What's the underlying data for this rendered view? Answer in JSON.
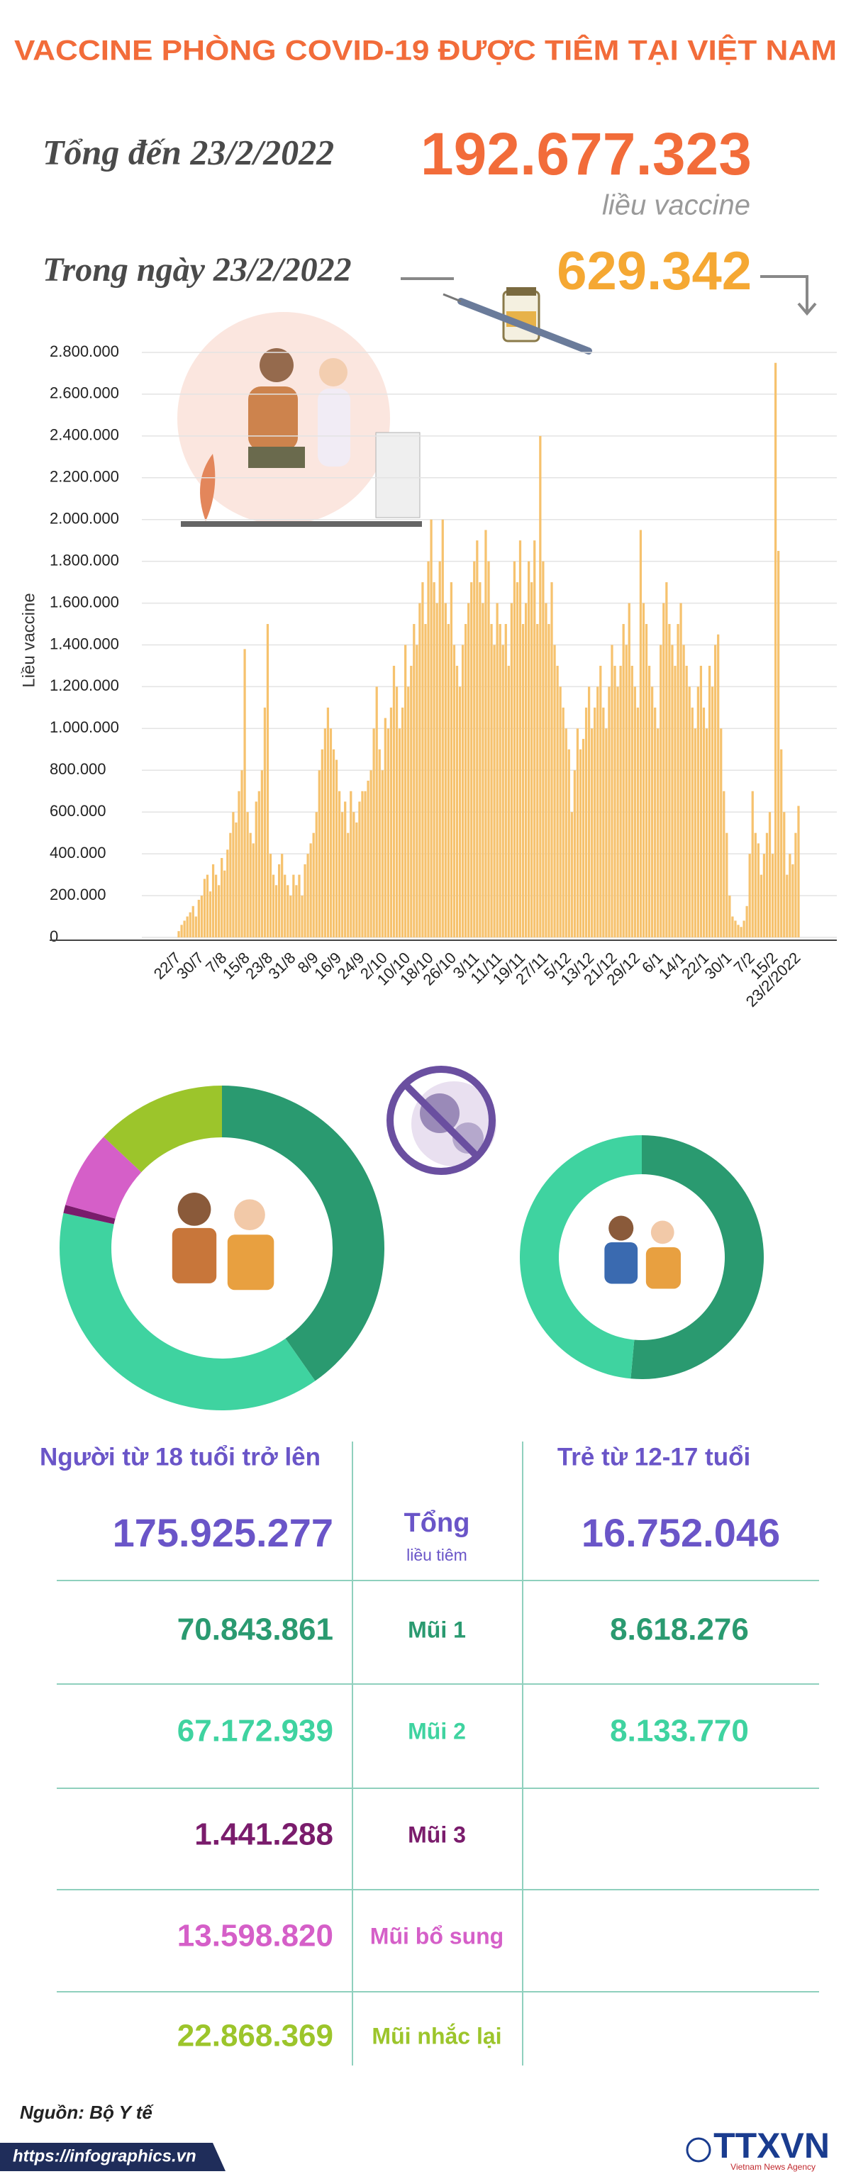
{
  "header": {
    "title": "VACCINE PHÒNG COVID-19 ĐƯỢC TIÊM TẠI VIỆT NAM",
    "total_text": "Tổng đến 23/2/2022",
    "total": {
      "value": 192677323,
      "label": "192.677.323"
    },
    "unit": "liều vaccine",
    "daily_text": "Trong ngày 23/2/2022",
    "daily": {
      "value": 629342,
      "label": "629.342"
    }
  },
  "chart_data": [
    {
      "type": "bar",
      "y_label": "Liều vaccine",
      "color": "#f6c26e",
      "grid": true,
      "ylim": [
        0,
        2800000
      ],
      "yticks": [
        0,
        {
          "value": 200000,
          "label": "200.000"
        },
        {
          "value": 400000,
          "label": "400.000"
        },
        {
          "value": 600000,
          "label": "600.000"
        },
        {
          "value": 800000,
          "label": "800.000"
        },
        {
          "value": 1000000,
          "label": "1.000.000"
        },
        {
          "value": 1200000,
          "label": "1.200.000"
        },
        {
          "value": 1400000,
          "label": "1.400.000"
        },
        {
          "value": 1600000,
          "label": "1.600.000"
        },
        {
          "value": 1800000,
          "label": "1.800.000"
        },
        {
          "value": 2000000,
          "label": "2.000.000"
        },
        {
          "value": 2200000,
          "label": "2.200.000"
        },
        {
          "value": 2400000,
          "label": "2.400.000"
        },
        {
          "value": 2600000,
          "label": "2.600.000"
        },
        {
          "value": 2800000,
          "label": "2.800.000"
        }
      ],
      "categories": [
        "22/7",
        null,
        null,
        null,
        null,
        null,
        null,
        null,
        "30/7",
        null,
        null,
        null,
        null,
        null,
        null,
        null,
        "7/8",
        null,
        null,
        null,
        null,
        null,
        null,
        null,
        "15/8",
        null,
        null,
        null,
        null,
        null,
        null,
        null,
        "23/8",
        null,
        null,
        null,
        null,
        null,
        null,
        null,
        "31/8",
        null,
        null,
        null,
        null,
        null,
        null,
        null,
        "8/9",
        null,
        null,
        null,
        null,
        null,
        null,
        null,
        "16/9",
        null,
        null,
        null,
        null,
        null,
        null,
        null,
        "24/9",
        null,
        null,
        null,
        null,
        null,
        null,
        null,
        "2/10",
        null,
        null,
        null,
        null,
        null,
        null,
        null,
        "10/10",
        null,
        null,
        null,
        null,
        null,
        null,
        null,
        "18/10",
        null,
        null,
        null,
        null,
        null,
        null,
        null,
        "26/10",
        null,
        null,
        null,
        null,
        null,
        null,
        null,
        "3/11",
        null,
        null,
        null,
        null,
        null,
        null,
        null,
        "11/11",
        null,
        null,
        null,
        null,
        null,
        null,
        null,
        "19/11",
        null,
        null,
        null,
        null,
        null,
        null,
        null,
        "27/11",
        null,
        null,
        null,
        null,
        null,
        null,
        null,
        "5/12",
        null,
        null,
        null,
        null,
        null,
        null,
        null,
        "13/12",
        null,
        null,
        null,
        null,
        null,
        null,
        null,
        "21/12",
        null,
        null,
        null,
        null,
        null,
        null,
        null,
        "29/12",
        null,
        null,
        null,
        null,
        null,
        null,
        null,
        "6/1",
        null,
        null,
        null,
        null,
        null,
        null,
        null,
        "14/1",
        null,
        null,
        null,
        null,
        null,
        null,
        null,
        "22/1",
        null,
        null,
        null,
        null,
        null,
        null,
        null,
        "30/1",
        null,
        null,
        null,
        null,
        null,
        null,
        null,
        "7/2",
        null,
        null,
        null,
        null,
        null,
        null,
        null,
        "15/2",
        null,
        null,
        null,
        null,
        null,
        null,
        null,
        "23/2/2022"
      ],
      "values": [
        30000,
        60000,
        80000,
        100000,
        120000,
        150000,
        100000,
        180000,
        200000,
        280000,
        300000,
        220000,
        350000,
        300000,
        250000,
        380000,
        320000,
        420000,
        500000,
        600000,
        550000,
        700000,
        800000,
        1380000,
        600000,
        500000,
        450000,
        650000,
        700000,
        800000,
        1100000,
        1500000,
        400000,
        300000,
        250000,
        350000,
        400000,
        300000,
        250000,
        200000,
        300000,
        250000,
        300000,
        200000,
        350000,
        400000,
        450000,
        500000,
        600000,
        800000,
        900000,
        1000000,
        1100000,
        1000000,
        900000,
        850000,
        700000,
        600000,
        650000,
        500000,
        700000,
        600000,
        550000,
        650000,
        700000,
        700000,
        750000,
        800000,
        1000000,
        1200000,
        900000,
        800000,
        1050000,
        1000000,
        1100000,
        1300000,
        1200000,
        1000000,
        1100000,
        1400000,
        1200000,
        1300000,
        1500000,
        1400000,
        1600000,
        1700000,
        1500000,
        1800000,
        2000000,
        1700000,
        1600000,
        1800000,
        2000000,
        1600000,
        1500000,
        1700000,
        1400000,
        1300000,
        1200000,
        1400000,
        1500000,
        1600000,
        1700000,
        1800000,
        1900000,
        1700000,
        1600000,
        1950000,
        1800000,
        1500000,
        1400000,
        1600000,
        1500000,
        1400000,
        1500000,
        1300000,
        1600000,
        1800000,
        1700000,
        1900000,
        1500000,
        1600000,
        1800000,
        1700000,
        1900000,
        1500000,
        2400000,
        1800000,
        1600000,
        1500000,
        1700000,
        1400000,
        1300000,
        1200000,
        1100000,
        1000000,
        900000,
        600000,
        800000,
        1000000,
        900000,
        950000,
        1100000,
        1200000,
        1000000,
        1100000,
        1200000,
        1300000,
        1100000,
        1000000,
        1200000,
        1400000,
        1300000,
        1200000,
        1300000,
        1500000,
        1400000,
        1600000,
        1300000,
        1200000,
        1100000,
        1950000,
        1600000,
        1500000,
        1300000,
        1200000,
        1100000,
        1000000,
        1400000,
        1600000,
        1700000,
        1500000,
        1400000,
        1300000,
        1500000,
        1600000,
        1400000,
        1300000,
        1200000,
        1100000,
        1000000,
        1200000,
        1300000,
        1100000,
        1000000,
        1300000,
        1200000,
        1400000,
        1450000,
        1000000,
        700000,
        500000,
        200000,
        100000,
        80000,
        60000,
        50000,
        80000,
        150000,
        400000,
        700000,
        500000,
        450000,
        300000,
        400000,
        500000,
        600000,
        400000,
        2750000,
        1850000,
        900000,
        600000,
        300000,
        400000,
        350000,
        500000,
        629342
      ]
    },
    {
      "type": "donut",
      "title": "Người từ 18 tuổi trở lên",
      "total": {
        "value": 175925277,
        "label": "175.925.277"
      },
      "categories": [
        "Mũi 1",
        "Mũi 2",
        "Mũi 3",
        "Mũi bổ sung",
        "Mũi nhắc lại"
      ],
      "values": [
        70843861,
        67172939,
        1441288,
        13598820,
        22868369
      ],
      "value_labels": [
        "70.843.861",
        "67.172.939",
        "1.441.288",
        "13.598.820",
        "22.868.369"
      ],
      "colors": [
        "#2a9a70",
        "#3fd3a0",
        "#7a1c6c",
        "#d55fc8",
        "#9cc52b"
      ]
    },
    {
      "type": "donut",
      "title": "Trẻ từ 12-17 tuổi",
      "total": {
        "value": 16752046,
        "label": "16.752.046"
      },
      "values": [
        8618276,
        8133770
      ],
      "value_labels": [
        "8.618.276",
        "8.133.770"
      ],
      "colors": [
        "#2a9a70",
        "#3fd3a0"
      ]
    }
  ],
  "table": {
    "total_heading": "Tổng",
    "total_note": "liều tiêm"
  },
  "footer": {
    "source": "Nguồn: Bộ Y tế",
    "url": "https://infographics.vn",
    "agency": "TTXVN",
    "agency_en": "Vietnam News Agency"
  }
}
